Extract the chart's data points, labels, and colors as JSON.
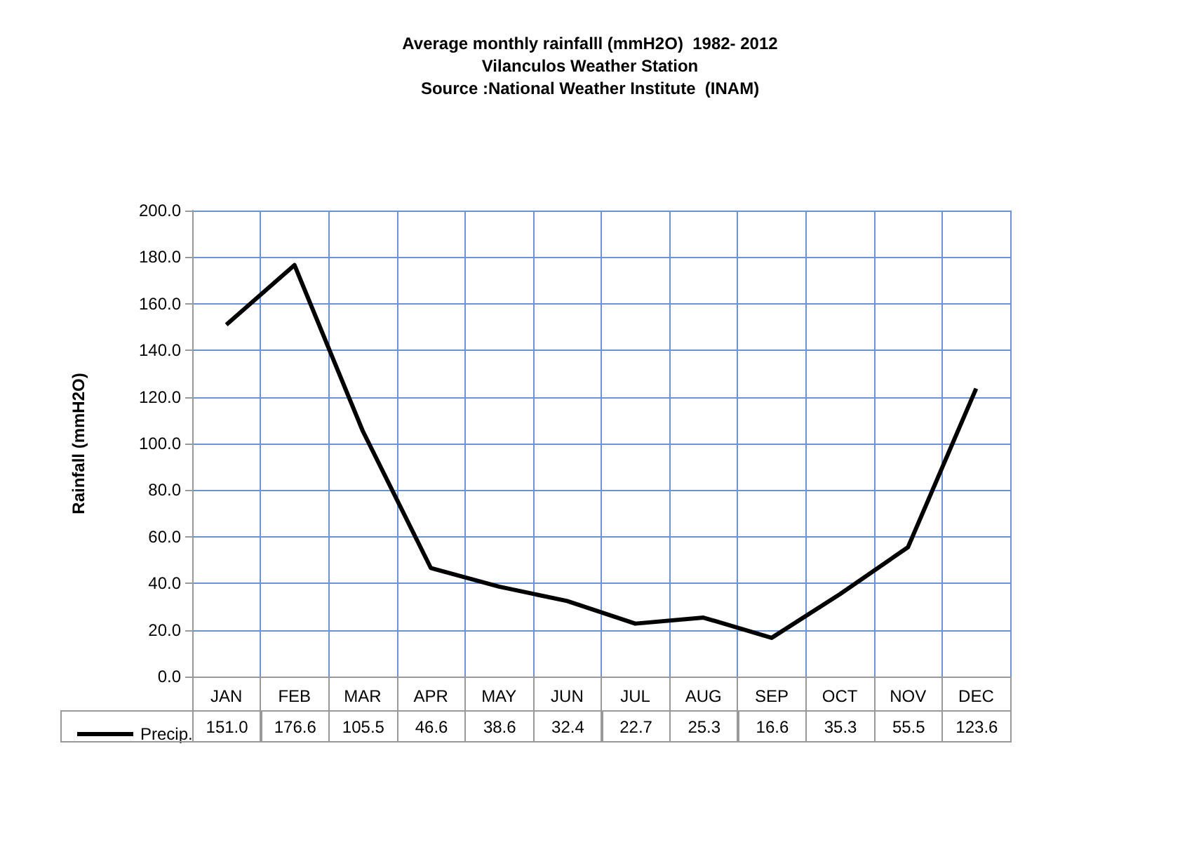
{
  "chart_data": {
    "type": "line",
    "title": "Average monthly rainfalll (mmH2O)  1982- 2012",
    "subtitle": "Vilanculos Weather Station",
    "annotations": [
      "Source :National Weather Institute  (INAM)"
    ],
    "ylabel": "Rainfall (mmH2O)",
    "categories": [
      "JAN",
      "FEB",
      "MAR",
      "APR",
      "MAY",
      "JUN",
      "JUL",
      "AUG",
      "SEP",
      "OCT",
      "NOV",
      "DEC"
    ],
    "series": [
      {
        "name": "Precip.",
        "color": "#000000",
        "values": [
          151.0,
          176.6,
          105.5,
          46.6,
          38.6,
          32.4,
          22.7,
          25.3,
          16.6,
          35.3,
          55.5,
          123.6
        ],
        "value_labels": [
          "151.0",
          "176.6",
          "105.5",
          "46.6",
          "38.6",
          "32.4",
          "22.7",
          "25.3",
          "16.6",
          "35.3",
          "55.5",
          "123.6"
        ]
      }
    ],
    "ylim": [
      0,
      200
    ],
    "yticks": [
      {
        "value": 0,
        "label": "0.0"
      },
      {
        "value": 20,
        "label": "20.0"
      },
      {
        "value": 40,
        "label": "40.0"
      },
      {
        "value": 60,
        "label": "60.0"
      },
      {
        "value": 80,
        "label": "80.0"
      },
      {
        "value": 100,
        "label": "100.0"
      },
      {
        "value": 120,
        "label": "120.0"
      },
      {
        "value": 140,
        "label": "140.0"
      },
      {
        "value": 160,
        "label": "160.0"
      },
      {
        "value": 180,
        "label": "180.0"
      },
      {
        "value": 200,
        "label": "200.0"
      }
    ],
    "grid": true,
    "legend": "bottom",
    "marker": "none",
    "line_style": "solid"
  }
}
